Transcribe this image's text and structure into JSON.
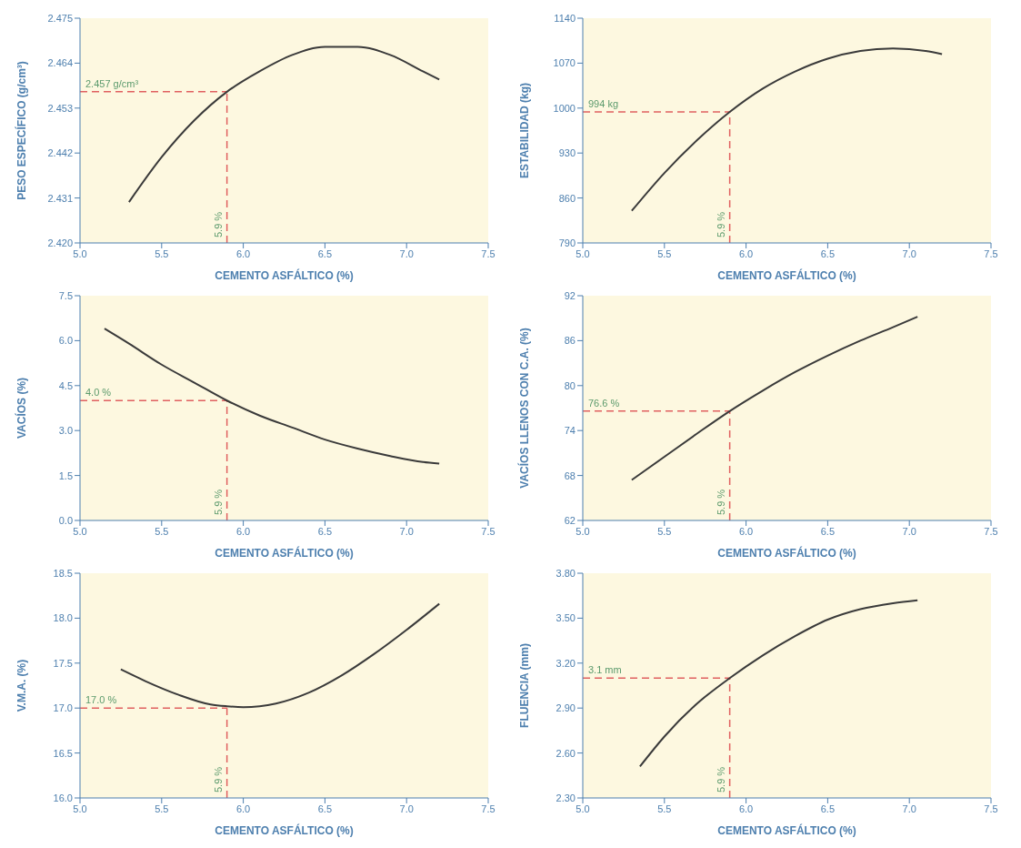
{
  "chart_data": [
    {
      "type": "line",
      "xlabel": "CEMENTO ASFÁLTICO (%)",
      "ylabel": "PESO ESPECÍFICO (g/cm³)",
      "x": [
        5.3,
        5.5,
        5.7,
        5.9,
        6.1,
        6.3,
        6.5,
        6.7,
        6.9,
        7.1,
        7.2
      ],
      "series": [
        {
          "color": "#3a3a3a",
          "values": [
            2.43,
            2.441,
            2.45,
            2.457,
            2.462,
            2.466,
            2.468,
            2.468,
            2.466,
            2.462,
            2.46
          ]
        }
      ],
      "xlim": [
        5.0,
        7.5
      ],
      "xticks": [
        {
          "value": 5,
          "label": "5.0"
        },
        5.5,
        {
          "value": 6,
          "label": "6.0"
        },
        6.5,
        {
          "value": 7,
          "label": "7.0"
        },
        7.5
      ],
      "ylim": [
        2.42,
        2.475
      ],
      "yticks": [
        {
          "value": 2.42,
          "label": "2.420"
        },
        2.431,
        2.442,
        2.453,
        2.464,
        2.475
      ],
      "ref_lines": [
        {
          "axis": "y",
          "value": 2.457,
          "label": "2.457 g/cm³",
          "color": "#e06060",
          "line_style": "dashed"
        },
        {
          "axis": "x",
          "value": 5.9,
          "label": "5.9 %",
          "color": "#e06060",
          "line_style": "dashed"
        }
      ],
      "grid": false,
      "legend": false
    },
    {
      "type": "line",
      "xlabel": "CEMENTO ASFÁLTICO (%)",
      "ylabel": "ESTABILIDAD (kg)",
      "x": [
        5.3,
        5.5,
        5.7,
        5.9,
        6.1,
        6.3,
        6.5,
        6.7,
        6.9,
        7.1,
        7.2
      ],
      "series": [
        {
          "color": "#3a3a3a",
          "values": [
            840,
            899,
            950,
            994,
            1030,
            1057,
            1077,
            1089,
            1093,
            1089,
            1084
          ]
        }
      ],
      "xlim": [
        5.0,
        7.5
      ],
      "xticks": [
        {
          "value": 5,
          "label": "5.0"
        },
        5.5,
        {
          "value": 6,
          "label": "6.0"
        },
        6.5,
        {
          "value": 7,
          "label": "7.0"
        },
        7.5
      ],
      "ylim": [
        790,
        1140
      ],
      "yticks": [
        790,
        860,
        930,
        1000,
        1070,
        1140
      ],
      "ref_lines": [
        {
          "axis": "y",
          "value": 994,
          "label": "994 kg",
          "color": "#e06060",
          "line_style": "dashed"
        },
        {
          "axis": "x",
          "value": 5.9,
          "label": "5.9 %",
          "color": "#e06060",
          "line_style": "dashed"
        }
      ],
      "grid": false,
      "legend": false
    },
    {
      "type": "line",
      "xlabel": "CEMENTO ASFÁLTICO (%)",
      "ylabel": "VACÍOS (%)",
      "x": [
        5.15,
        5.3,
        5.5,
        5.7,
        5.9,
        6.1,
        6.3,
        6.5,
        6.7,
        6.9,
        7.1,
        7.2
      ],
      "series": [
        {
          "color": "#3a3a3a",
          "values": [
            6.4,
            5.9,
            5.2,
            4.6,
            4.0,
            3.5,
            3.1,
            2.7,
            2.4,
            2.15,
            1.95,
            1.9
          ]
        }
      ],
      "xlim": [
        5.0,
        7.5
      ],
      "xticks": [
        {
          "value": 5,
          "label": "5.0"
        },
        5.5,
        {
          "value": 6,
          "label": "6.0"
        },
        6.5,
        {
          "value": 7,
          "label": "7.0"
        },
        7.5
      ],
      "ylim": [
        0,
        7.5
      ],
      "yticks": [
        {
          "value": 0,
          "label": "0.0"
        },
        1.5,
        {
          "value": 3,
          "label": "3.0"
        },
        4.5,
        {
          "value": 6,
          "label": "6.0"
        },
        7.5
      ],
      "ref_lines": [
        {
          "axis": "y",
          "value": 4.0,
          "label": "4.0 %",
          "color": "#e06060",
          "line_style": "dashed"
        },
        {
          "axis": "x",
          "value": 5.9,
          "label": "5.9 %",
          "color": "#e06060",
          "line_style": "dashed"
        }
      ],
      "grid": false,
      "legend": false
    },
    {
      "type": "line",
      "xlabel": "CEMENTO ASFÁLTICO (%)",
      "ylabel": "VACÍOS LLENOS CON C.A. (%)",
      "x": [
        5.3,
        5.5,
        5.7,
        5.9,
        6.1,
        6.3,
        6.5,
        6.7,
        6.9,
        7.05
      ],
      "series": [
        {
          "color": "#3a3a3a",
          "values": [
            67.4,
            70.5,
            73.6,
            76.6,
            79.3,
            81.8,
            84.0,
            86.0,
            87.8,
            89.2
          ]
        }
      ],
      "xlim": [
        5.0,
        7.5
      ],
      "xticks": [
        {
          "value": 5,
          "label": "5.0"
        },
        5.5,
        {
          "value": 6,
          "label": "6.0"
        },
        6.5,
        {
          "value": 7,
          "label": "7.0"
        },
        7.5
      ],
      "ylim": [
        62,
        92
      ],
      "yticks": [
        62,
        68,
        74,
        80,
        86,
        92
      ],
      "ref_lines": [
        {
          "axis": "y",
          "value": 76.6,
          "label": "76.6 %",
          "color": "#e06060",
          "line_style": "dashed"
        },
        {
          "axis": "x",
          "value": 5.9,
          "label": "5.9 %",
          "color": "#e06060",
          "line_style": "dashed"
        }
      ],
      "grid": false,
      "legend": false
    },
    {
      "type": "line",
      "xlabel": "CEMENTO ASFÁLTICO (%)",
      "ylabel": "V.M.A. (%)",
      "x": [
        5.25,
        5.4,
        5.6,
        5.8,
        5.9,
        6.0,
        6.2,
        6.4,
        6.6,
        6.8,
        7.0,
        7.2
      ],
      "series": [
        {
          "color": "#3a3a3a",
          "values": [
            17.43,
            17.3,
            17.15,
            17.04,
            17.02,
            17.01,
            17.05,
            17.17,
            17.36,
            17.6,
            17.87,
            18.16
          ]
        }
      ],
      "xlim": [
        5.0,
        7.5
      ],
      "xticks": [
        {
          "value": 5,
          "label": "5.0"
        },
        5.5,
        {
          "value": 6,
          "label": "6.0"
        },
        6.5,
        {
          "value": 7,
          "label": "7.0"
        },
        7.5
      ],
      "ylim": [
        16,
        18.5
      ],
      "yticks": [
        {
          "value": 16,
          "label": "16.0"
        },
        16.5,
        {
          "value": 17,
          "label": "17.0"
        },
        17.5,
        {
          "value": 18,
          "label": "18.0"
        },
        18.5
      ],
      "ref_lines": [
        {
          "axis": "y",
          "value": 17.0,
          "label": "17.0 %",
          "color": "#e06060",
          "line_style": "dashed"
        },
        {
          "axis": "x",
          "value": 5.9,
          "label": "5.9 %",
          "color": "#e06060",
          "line_style": "dashed"
        }
      ],
      "grid": false,
      "legend": false
    },
    {
      "type": "line",
      "xlabel": "CEMENTO ASFÁLTICO (%)",
      "ylabel": "FLUENCIA (mm)",
      "x": [
        5.35,
        5.5,
        5.7,
        5.9,
        6.1,
        6.3,
        6.5,
        6.7,
        6.9,
        7.05
      ],
      "series": [
        {
          "color": "#3a3a3a",
          "values": [
            2.51,
            2.71,
            2.93,
            3.1,
            3.25,
            3.38,
            3.49,
            3.56,
            3.6,
            3.62
          ]
        }
      ],
      "xlim": [
        5.0,
        7.5
      ],
      "xticks": [
        {
          "value": 5,
          "label": "5.0"
        },
        5.5,
        {
          "value": 6,
          "label": "6.0"
        },
        6.5,
        {
          "value": 7,
          "label": "7.0"
        },
        7.5
      ],
      "ylim": [
        2.3,
        3.8
      ],
      "yticks": [
        {
          "value": 2.3,
          "label": "2.30"
        },
        {
          "value": 2.6,
          "label": "2.60"
        },
        {
          "value": 2.9,
          "label": "2.90"
        },
        {
          "value": 3.2,
          "label": "3.20"
        },
        {
          "value": 3.5,
          "label": "3.50"
        },
        {
          "value": 3.8,
          "label": "3.80"
        }
      ],
      "ref_lines": [
        {
          "axis": "y",
          "value": 3.1,
          "label": "3.1 mm",
          "color": "#e06060",
          "line_style": "dashed"
        },
        {
          "axis": "x",
          "value": 5.9,
          "label": "5.9 %",
          "color": "#e06060",
          "line_style": "dashed"
        }
      ],
      "grid": false,
      "legend": false
    }
  ]
}
